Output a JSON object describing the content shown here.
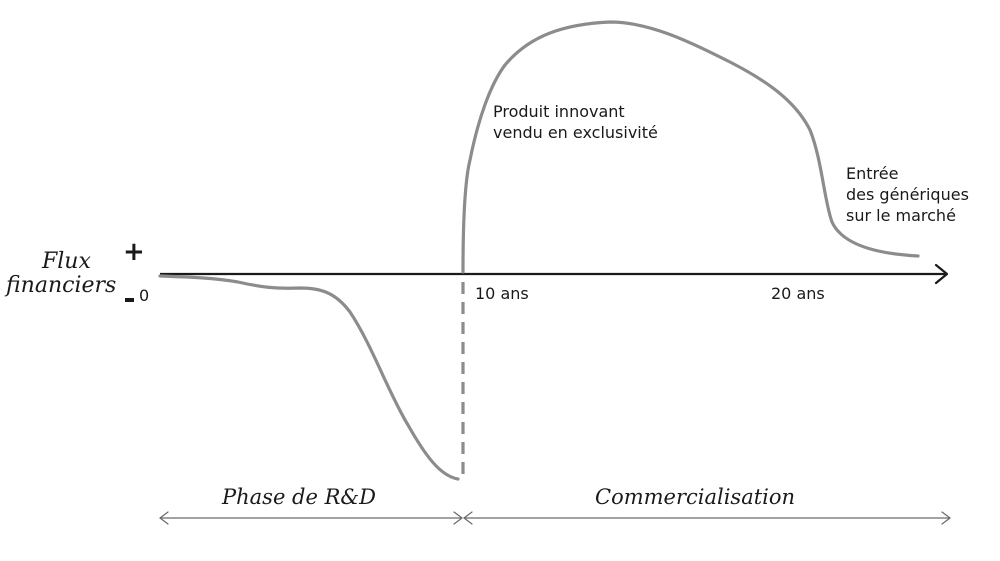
{
  "y_axis": {
    "label_line1": "Flux",
    "label_line2": "financiers",
    "plus_sign": "+",
    "minus_sign": "-",
    "zero": "0"
  },
  "x_axis": {
    "tick_10": "10 ans",
    "tick_20": "20 ans"
  },
  "annotations": {
    "innovant_line1": "Produit innovant",
    "innovant_line2": "vendu en exclusivité",
    "generiques_line1": "Entrée",
    "generiques_line2": "des génériques",
    "generiques_line3": "sur le marché"
  },
  "phases": {
    "rd": "Phase de R&D",
    "commercial": "Commercialisation"
  },
  "colors": {
    "curve": "#8c8c8c",
    "axis": "#1a1a1a",
    "text": "#1a1a1a"
  }
}
